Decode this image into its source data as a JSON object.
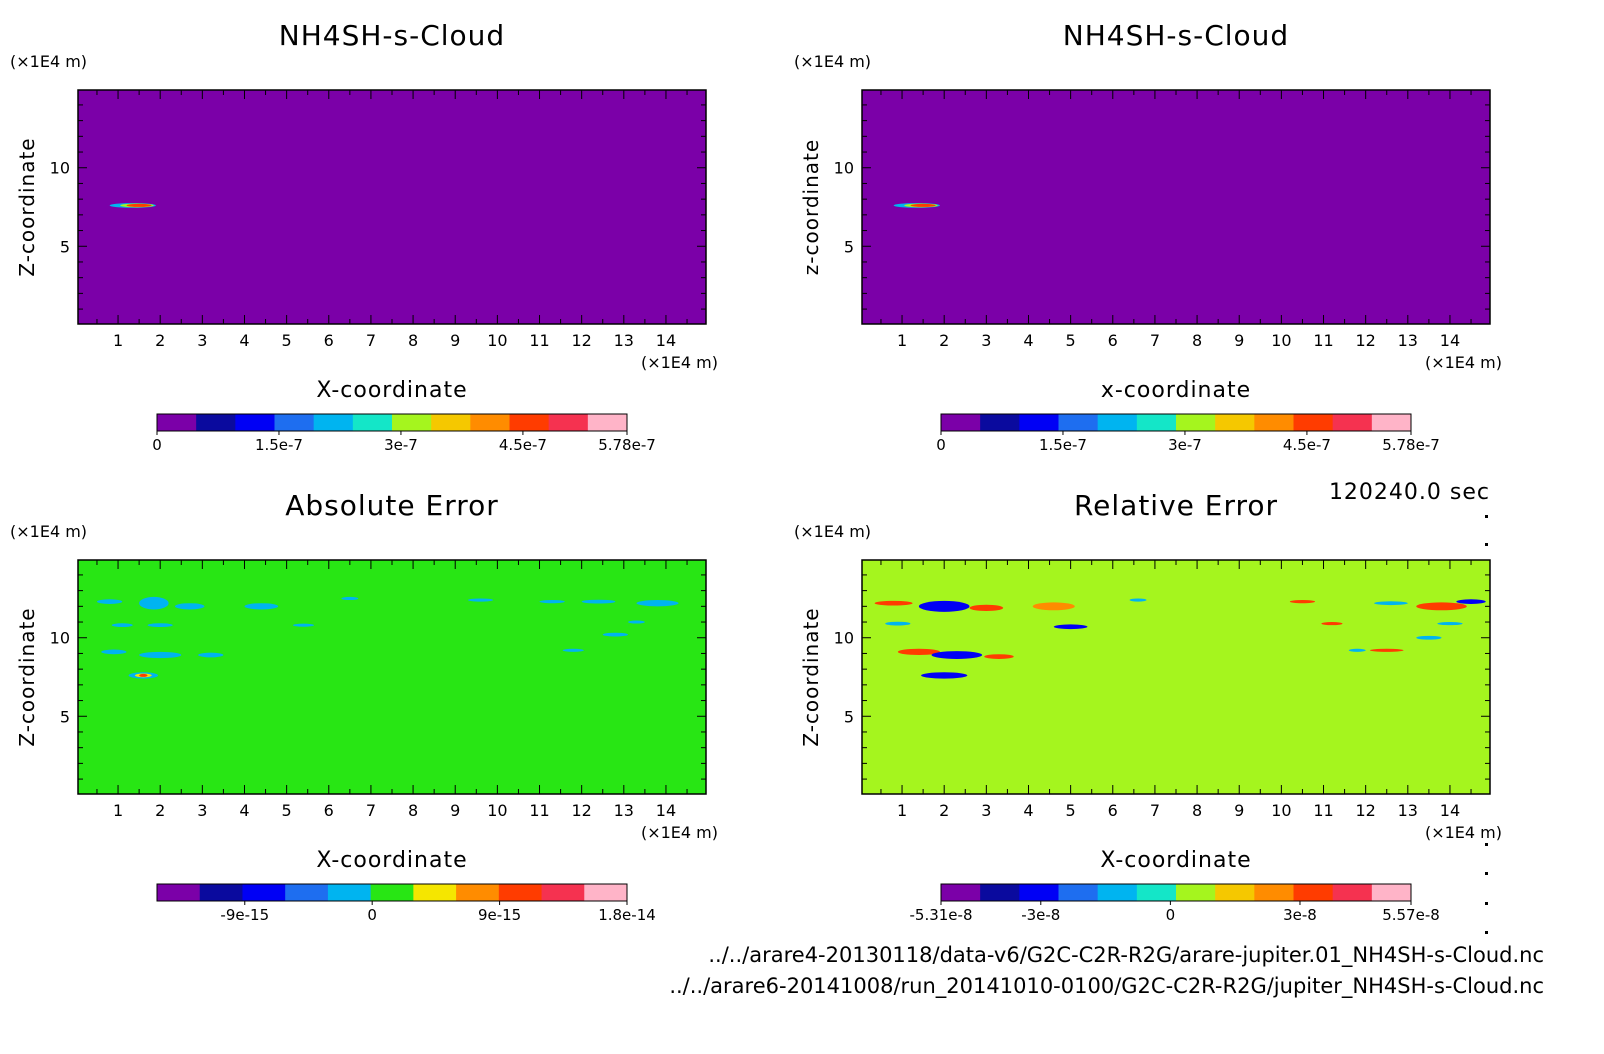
{
  "time_label": "120240.0 sec",
  "file_paths": [
    "../../arare4-20130118/data-v6/G2C-C2R-R2G/arare-jupiter.01_NH4SH-s-Cloud.nc",
    "../../arare6-20141008/run_20141010-0100/G2C-C2R-R2G/jupiter_NH4SH-s-Cloud.nc"
  ],
  "chart_data": [
    {
      "type": "heatmap",
      "title": "NH4SH-s-Cloud",
      "xlabel": "X-coordinate",
      "ylabel": "Z-coordinate",
      "x_unit": "(×1E4 m)",
      "y_unit": "(×1E4 m)",
      "xlim": [
        0.05,
        14.95
      ],
      "ylim": [
        0.05,
        14.95
      ],
      "x_ticks": [
        1,
        2,
        3,
        4,
        5,
        6,
        7,
        8,
        9,
        10,
        11,
        12,
        13,
        14
      ],
      "y_ticks": [
        5,
        10
      ],
      "background_color": "#7b00a8",
      "colorbar": {
        "colors": [
          "#7b00a8",
          "#0a0a9e",
          "#0000f5",
          "#1e6ef0",
          "#00b4f0",
          "#14e6c8",
          "#a5f51e",
          "#f5c800",
          "#ff8c00",
          "#ff3c00",
          "#f53250",
          "#ffb4c8"
        ],
        "tick_values": [
          0,
          1.5e-07,
          3e-07,
          4.5e-07,
          5.78e-07
        ],
        "tick_labels": [
          "0",
          "1.5e-7",
          "3e-7",
          "4.5e-7",
          "5.78e-7"
        ],
        "range": [
          0,
          5.78e-07
        ]
      },
      "features": [
        {
          "x": 1.35,
          "z": 7.6,
          "dx": 0.55,
          "dz": 0.15,
          "color": "#00b4f0"
        },
        {
          "x": 1.45,
          "z": 7.6,
          "dx": 0.4,
          "dz": 0.12,
          "color": "#a5f51e"
        },
        {
          "x": 1.5,
          "z": 7.6,
          "dx": 0.3,
          "dz": 0.09,
          "color": "#ff3c00"
        }
      ]
    },
    {
      "type": "heatmap",
      "title": "NH4SH-s-Cloud",
      "xlabel": "x-coordinate",
      "ylabel": "z-coordinate",
      "x_unit": "(×1E4 m)",
      "y_unit": "(×1E4 m)",
      "xlim": [
        0.05,
        14.95
      ],
      "ylim": [
        0.05,
        14.95
      ],
      "x_ticks": [
        1,
        2,
        3,
        4,
        5,
        6,
        7,
        8,
        9,
        10,
        11,
        12,
        13,
        14
      ],
      "y_ticks": [
        5,
        10
      ],
      "background_color": "#7b00a8",
      "colorbar": {
        "colors": [
          "#7b00a8",
          "#0a0a9e",
          "#0000f5",
          "#1e6ef0",
          "#00b4f0",
          "#14e6c8",
          "#a5f51e",
          "#f5c800",
          "#ff8c00",
          "#ff3c00",
          "#f53250",
          "#ffb4c8"
        ],
        "tick_values": [
          0,
          1.5e-07,
          3e-07,
          4.5e-07,
          5.78e-07
        ],
        "tick_labels": [
          "0",
          "1.5e-7",
          "3e-7",
          "4.5e-7",
          "5.78e-7"
        ],
        "range": [
          0,
          5.78e-07
        ]
      },
      "features": [
        {
          "x": 1.35,
          "z": 7.6,
          "dx": 0.55,
          "dz": 0.15,
          "color": "#00b4f0"
        },
        {
          "x": 1.45,
          "z": 7.6,
          "dx": 0.4,
          "dz": 0.12,
          "color": "#a5f51e"
        },
        {
          "x": 1.5,
          "z": 7.6,
          "dx": 0.3,
          "dz": 0.09,
          "color": "#ff3c00"
        }
      ]
    },
    {
      "type": "heatmap",
      "title": "Absolute Error",
      "xlabel": "X-coordinate",
      "ylabel": "Z-coordinate",
      "x_unit": "(×1E4 m)",
      "y_unit": "(×1E4 m)",
      "xlim": [
        0.05,
        14.95
      ],
      "ylim": [
        0.05,
        14.95
      ],
      "x_ticks": [
        1,
        2,
        3,
        4,
        5,
        6,
        7,
        8,
        9,
        10,
        11,
        12,
        13,
        14
      ],
      "y_ticks": [
        5,
        10
      ],
      "background_color": "#28e614",
      "colorbar": {
        "colors": [
          "#7b00a8",
          "#0a0a9e",
          "#0000f5",
          "#1e6ef0",
          "#00b4f0",
          "#28e614",
          "#f5e600",
          "#ff8c00",
          "#ff3c00",
          "#f53250",
          "#ffb4c8"
        ],
        "tick_values": [
          -9e-15,
          0,
          9e-15,
          1.8e-14
        ],
        "tick_labels": [
          "-9e-15",
          "0",
          "9e-15",
          "1.8e-14"
        ],
        "range": [
          -1.52e-14,
          1.8e-14
        ]
      },
      "features": [
        {
          "x": 0.8,
          "z": 12.3,
          "dx": 0.3,
          "dz": 0.15,
          "color": "#00b4f0"
        },
        {
          "x": 1.85,
          "z": 12.2,
          "dx": 0.35,
          "dz": 0.4,
          "color": "#00b4f0"
        },
        {
          "x": 2.7,
          "z": 12.0,
          "dx": 0.35,
          "dz": 0.2,
          "color": "#00b4f0"
        },
        {
          "x": 4.4,
          "z": 12.0,
          "dx": 0.4,
          "dz": 0.2,
          "color": "#00b4f0"
        },
        {
          "x": 1.1,
          "z": 10.8,
          "dx": 0.25,
          "dz": 0.12,
          "color": "#00b4f0"
        },
        {
          "x": 2.0,
          "z": 10.8,
          "dx": 0.3,
          "dz": 0.12,
          "color": "#00b4f0"
        },
        {
          "x": 0.9,
          "z": 9.1,
          "dx": 0.3,
          "dz": 0.15,
          "color": "#00b4f0"
        },
        {
          "x": 2.0,
          "z": 8.9,
          "dx": 0.5,
          "dz": 0.2,
          "color": "#00b4f0"
        },
        {
          "x": 3.2,
          "z": 8.9,
          "dx": 0.3,
          "dz": 0.15,
          "color": "#00b4f0"
        },
        {
          "x": 1.6,
          "z": 7.6,
          "dx": 0.35,
          "dz": 0.2,
          "color": "#00b4f0"
        },
        {
          "x": 1.6,
          "z": 7.6,
          "dx": 0.2,
          "dz": 0.12,
          "color": "#f5e600"
        },
        {
          "x": 1.6,
          "z": 7.6,
          "dx": 0.1,
          "dz": 0.06,
          "color": "#ff3c00"
        },
        {
          "x": 5.4,
          "z": 10.8,
          "dx": 0.25,
          "dz": 0.1,
          "color": "#00b4f0"
        },
        {
          "x": 6.5,
          "z": 12.5,
          "dx": 0.2,
          "dz": 0.1,
          "color": "#00b4f0"
        },
        {
          "x": 9.6,
          "z": 12.4,
          "dx": 0.3,
          "dz": 0.1,
          "color": "#00b4f0"
        },
        {
          "x": 11.3,
          "z": 12.3,
          "dx": 0.3,
          "dz": 0.1,
          "color": "#00b4f0"
        },
        {
          "x": 12.4,
          "z": 12.3,
          "dx": 0.4,
          "dz": 0.12,
          "color": "#00b4f0"
        },
        {
          "x": 13.8,
          "z": 12.2,
          "dx": 0.5,
          "dz": 0.2,
          "color": "#00b4f0"
        },
        {
          "x": 12.8,
          "z": 10.2,
          "dx": 0.3,
          "dz": 0.12,
          "color": "#00b4f0"
        },
        {
          "x": 11.8,
          "z": 9.2,
          "dx": 0.25,
          "dz": 0.1,
          "color": "#00b4f0"
        },
        {
          "x": 13.3,
          "z": 11.0,
          "dx": 0.2,
          "dz": 0.08,
          "color": "#00b4f0"
        }
      ]
    },
    {
      "type": "heatmap",
      "title": "Relative Error",
      "xlabel": "X-coordinate",
      "ylabel": "Z-coordinate",
      "x_unit": "(×1E4 m)",
      "y_unit": "(×1E4 m)",
      "xlim": [
        0.05,
        14.95
      ],
      "ylim": [
        0.05,
        14.95
      ],
      "x_ticks": [
        1,
        2,
        3,
        4,
        5,
        6,
        7,
        8,
        9,
        10,
        11,
        12,
        13,
        14
      ],
      "y_ticks": [
        5,
        10
      ],
      "background_color": "#a5f51e",
      "colorbar": {
        "colors": [
          "#7b00a8",
          "#0a0a9e",
          "#0000f5",
          "#1e6ef0",
          "#00b4f0",
          "#14e6c8",
          "#a5f51e",
          "#f5c800",
          "#ff8c00",
          "#ff3c00",
          "#f53250",
          "#ffb4c8"
        ],
        "tick_values": [
          -5.31e-08,
          -3e-08,
          0,
          3e-08,
          5.57e-08
        ],
        "tick_labels": [
          "-5.31e-8",
          "-3e-8",
          "0",
          "3e-8",
          "5.57e-8"
        ],
        "range": [
          -5.31e-08,
          5.57e-08
        ]
      },
      "features": [
        {
          "x": 0.8,
          "z": 12.2,
          "dx": 0.45,
          "dz": 0.15,
          "color": "#ff3c00"
        },
        {
          "x": 2.0,
          "z": 12.0,
          "dx": 0.6,
          "dz": 0.35,
          "color": "#0000f5"
        },
        {
          "x": 3.0,
          "z": 11.9,
          "dx": 0.4,
          "dz": 0.2,
          "color": "#ff3c00"
        },
        {
          "x": 4.6,
          "z": 12.0,
          "dx": 0.5,
          "dz": 0.25,
          "color": "#ff8c00"
        },
        {
          "x": 5.0,
          "z": 10.7,
          "dx": 0.4,
          "dz": 0.15,
          "color": "#0000f5"
        },
        {
          "x": 0.9,
          "z": 10.9,
          "dx": 0.3,
          "dz": 0.12,
          "color": "#00b4f0"
        },
        {
          "x": 1.4,
          "z": 9.1,
          "dx": 0.5,
          "dz": 0.2,
          "color": "#ff3c00"
        },
        {
          "x": 2.3,
          "z": 8.9,
          "dx": 0.6,
          "dz": 0.25,
          "color": "#0000f5"
        },
        {
          "x": 3.3,
          "z": 8.8,
          "dx": 0.35,
          "dz": 0.15,
          "color": "#ff3c00"
        },
        {
          "x": 2.0,
          "z": 7.6,
          "dx": 0.55,
          "dz": 0.2,
          "color": "#0000f5"
        },
        {
          "x": 6.6,
          "z": 12.4,
          "dx": 0.2,
          "dz": 0.1,
          "color": "#00b4f0"
        },
        {
          "x": 10.5,
          "z": 12.3,
          "dx": 0.3,
          "dz": 0.1,
          "color": "#ff3c00"
        },
        {
          "x": 12.6,
          "z": 12.2,
          "dx": 0.4,
          "dz": 0.12,
          "color": "#00b4f0"
        },
        {
          "x": 13.8,
          "z": 12.0,
          "dx": 0.6,
          "dz": 0.25,
          "color": "#ff3c00"
        },
        {
          "x": 14.5,
          "z": 12.3,
          "dx": 0.35,
          "dz": 0.15,
          "color": "#0000f5"
        },
        {
          "x": 11.2,
          "z": 10.9,
          "dx": 0.25,
          "dz": 0.1,
          "color": "#ff3c00"
        },
        {
          "x": 14.0,
          "z": 10.9,
          "dx": 0.3,
          "dz": 0.1,
          "color": "#00b4f0"
        },
        {
          "x": 12.5,
          "z": 9.2,
          "dx": 0.4,
          "dz": 0.1,
          "color": "#ff3c00"
        },
        {
          "x": 13.5,
          "z": 10.0,
          "dx": 0.3,
          "dz": 0.12,
          "color": "#00b4f0"
        },
        {
          "x": 11.8,
          "z": 9.2,
          "dx": 0.2,
          "dz": 0.1,
          "color": "#00b4f0"
        }
      ]
    }
  ]
}
